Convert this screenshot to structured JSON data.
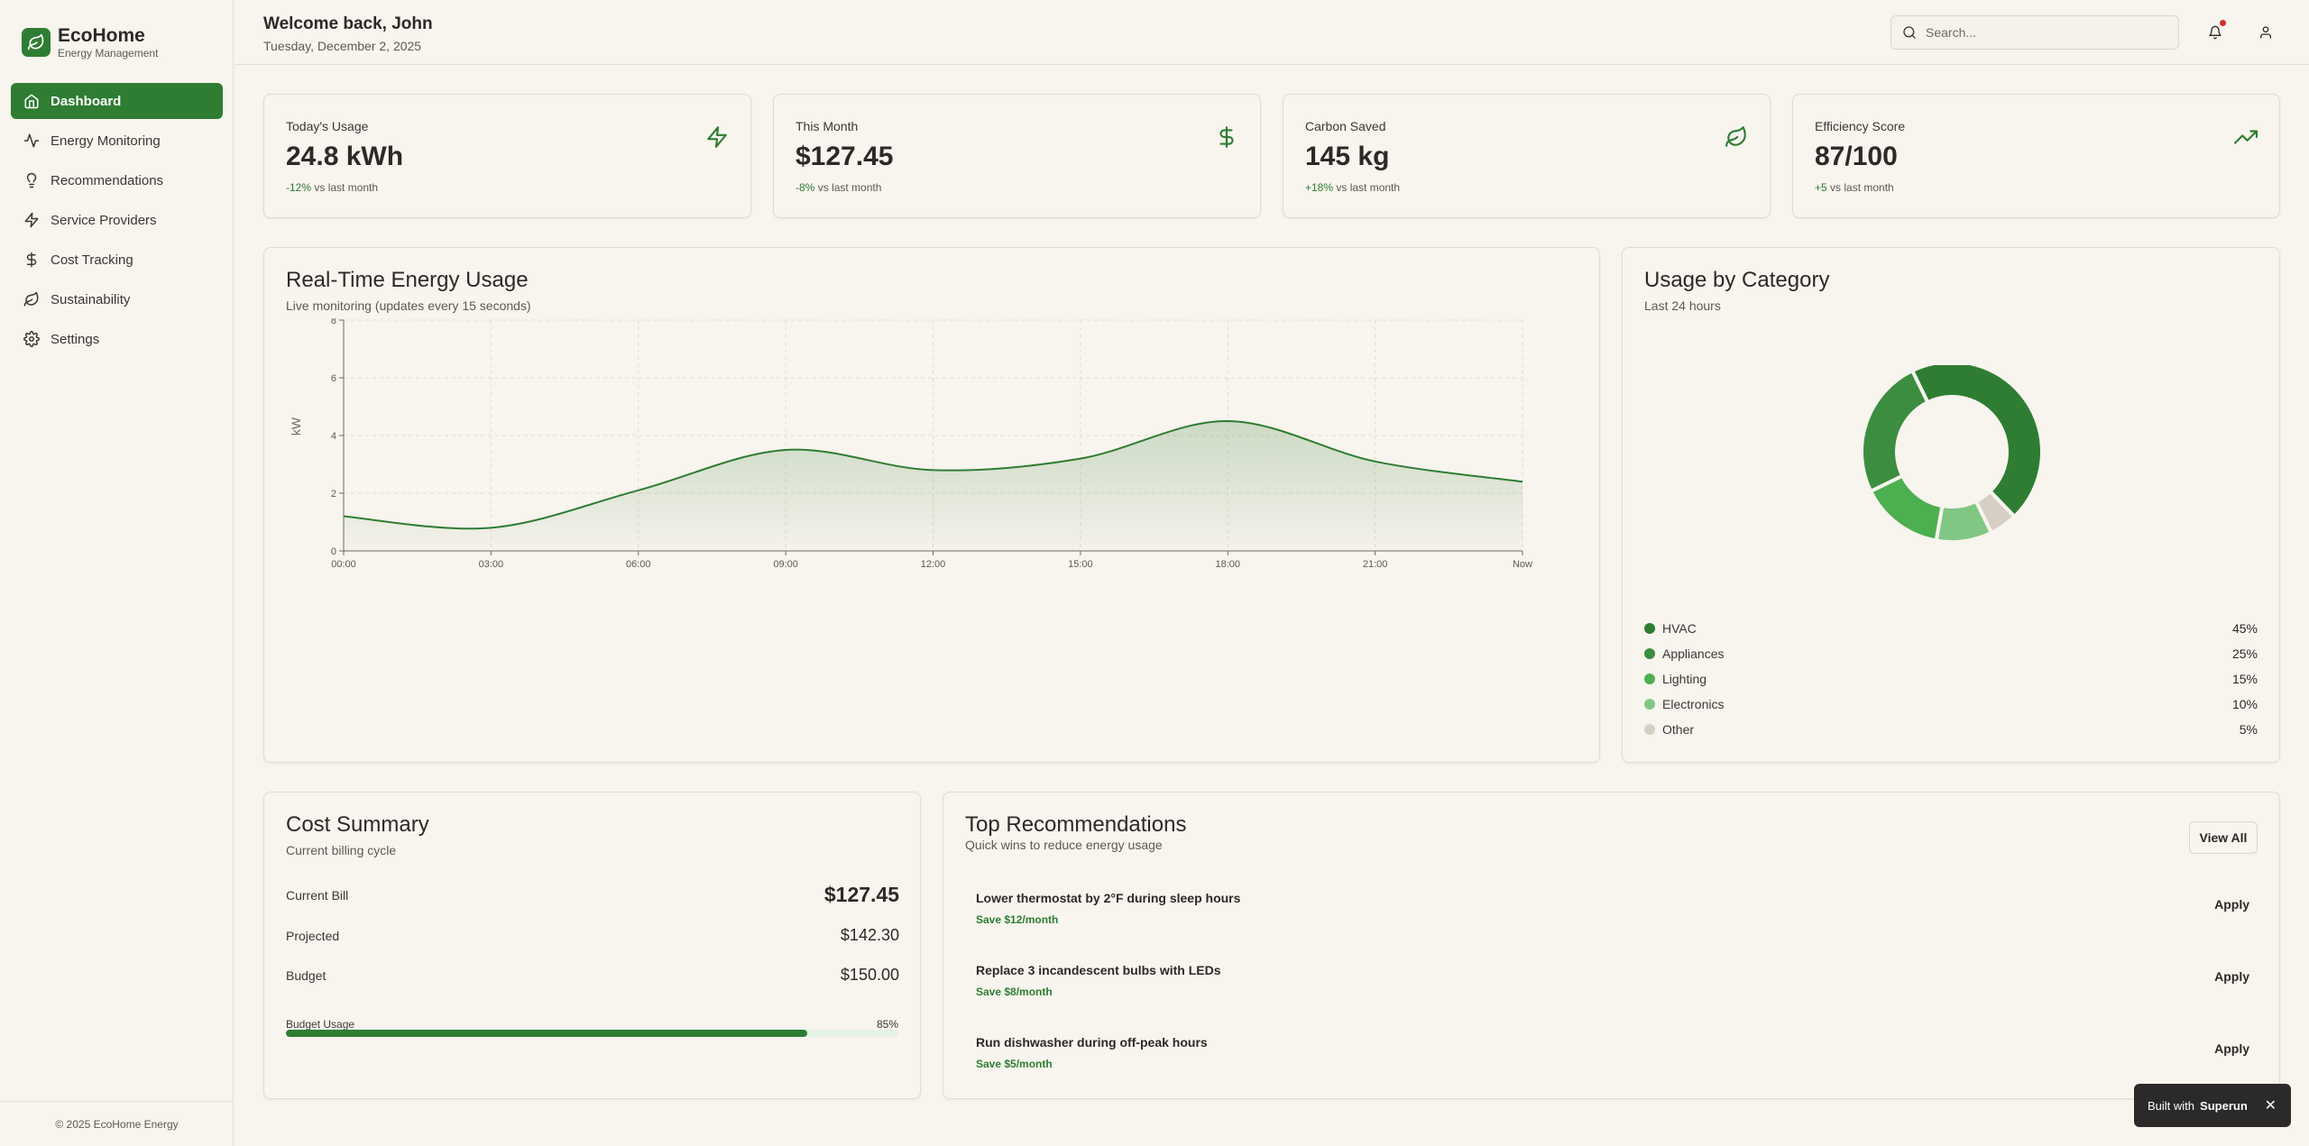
{
  "brand": {
    "name": "EcoHome",
    "subtitle": "Energy Management"
  },
  "nav": {
    "items": [
      {
        "label": "Dashboard",
        "icon": "home-icon"
      },
      {
        "label": "Energy Monitoring",
        "icon": "activity-icon"
      },
      {
        "label": "Recommendations",
        "icon": "lightbulb-icon"
      },
      {
        "label": "Service Providers",
        "icon": "zap-icon"
      },
      {
        "label": "Cost Tracking",
        "icon": "dollar-icon"
      },
      {
        "label": "Sustainability",
        "icon": "leaf-icon"
      },
      {
        "label": "Settings",
        "icon": "gear-icon"
      }
    ],
    "active": "Dashboard"
  },
  "footer": {
    "text": "© 2025 EcoHome Energy"
  },
  "header": {
    "welcome": "Welcome back, John",
    "date": "Tuesday, December 2, 2025",
    "search_placeholder": "Search..."
  },
  "stats": [
    {
      "label": "Today's Usage",
      "value": "24.8 kWh",
      "change": "-12%",
      "change_suffix": "vs last month",
      "icon": "zap-icon"
    },
    {
      "label": "This Month",
      "value": "$127.45",
      "change": "-8%",
      "change_suffix": "vs last month",
      "icon": "dollar-icon"
    },
    {
      "label": "Carbon Saved",
      "value": "145 kg",
      "change": "+18%",
      "change_suffix": "vs last month",
      "icon": "leaf-icon"
    },
    {
      "label": "Efficiency Score",
      "value": "87/100",
      "change": "+5",
      "change_suffix": "vs last month",
      "icon": "trending-up-icon"
    }
  ],
  "realtime": {
    "title": "Real-Time Energy Usage",
    "subtitle": "Live monitoring (updates every 15 seconds)"
  },
  "category": {
    "title": "Usage by Category",
    "subtitle": "Last 24 hours"
  },
  "cost": {
    "title": "Cost Summary",
    "subtitle": "Current billing cycle",
    "current_label": "Current Bill",
    "current_value": "$127.45",
    "projected_label": "Projected",
    "projected_value": "$142.30",
    "budget_label": "Budget",
    "budget_value": "$150.00",
    "usage_label": "Budget Usage",
    "usage_pct": "85%",
    "usage_fraction": 0.85
  },
  "recommendations": {
    "title": "Top Recommendations",
    "subtitle": "Quick wins to reduce energy usage",
    "view_all": "View All",
    "items": [
      {
        "title": "Lower thermostat by 2°F during sleep hours",
        "save": "Save $12/month",
        "action": "Apply"
      },
      {
        "title": "Replace 3 incandescent bulbs with LEDs",
        "save": "Save $8/month",
        "action": "Apply"
      },
      {
        "title": "Run dishwasher during off-peak hours",
        "save": "Save $5/month",
        "action": "Apply"
      }
    ]
  },
  "toast": {
    "prefix": "Built with",
    "brand": "Superun",
    "close": "✕"
  },
  "colors": {
    "primary": "#2e7d32",
    "background": "#f8f4ee",
    "alert": "#d32f2f"
  },
  "chart_data": [
    {
      "type": "area",
      "ylabel": "kW",
      "ylim": [
        0,
        8
      ],
      "yticks": [
        0,
        2,
        4,
        6,
        8
      ],
      "categories": [
        "00:00",
        "03:00",
        "06:00",
        "09:00",
        "12:00",
        "15:00",
        "18:00",
        "21:00",
        "Now"
      ],
      "values": [
        1.2,
        0.8,
        2.1,
        3.5,
        2.8,
        3.2,
        4.5,
        3.1,
        2.4
      ],
      "grid": true,
      "color": "#2e7d32"
    },
    {
      "type": "pie",
      "categories": [
        "HVAC",
        "Appliances",
        "Lighting",
        "Electronics",
        "Other"
      ],
      "values": [
        45,
        25,
        15,
        10,
        5
      ],
      "labels": [
        "45%",
        "25%",
        "15%",
        "10%",
        "5%"
      ],
      "colors": [
        "#2e7d32",
        "#3b8e3f",
        "#4caf50",
        "#81c784",
        "#d7cfc4"
      ]
    }
  ]
}
